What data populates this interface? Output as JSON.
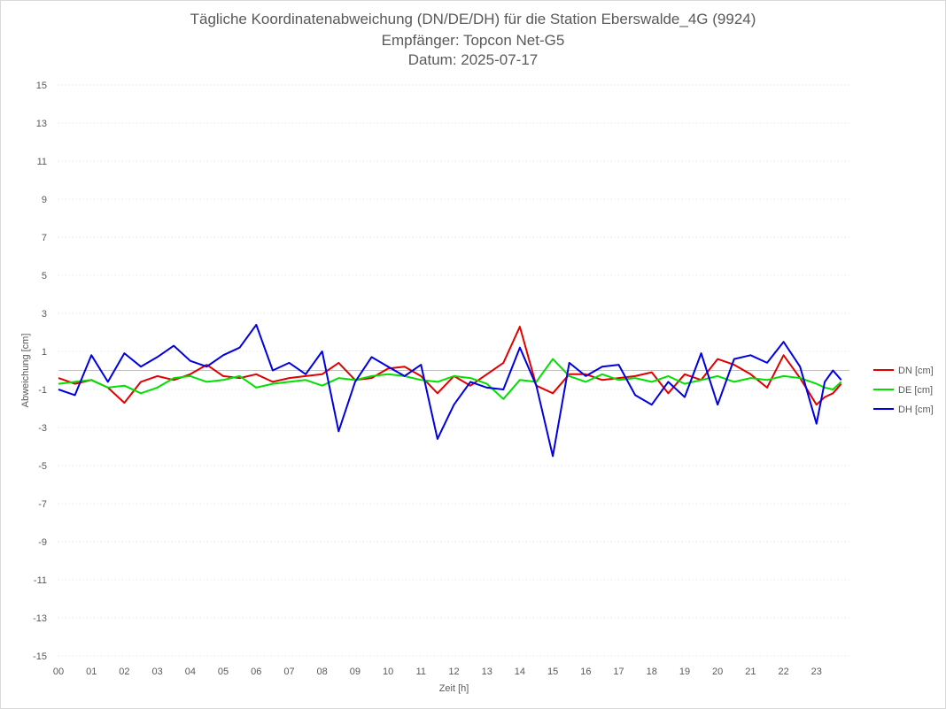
{
  "header": {
    "title": "Tägliche Koordinatenabweichung (DN/DE/DH) für die Station Eberswalde_4G (9924)",
    "subtitle1": "Empfänger: Topcon Net-G5",
    "subtitle2": "Datum: 2025-07-17"
  },
  "chart_data": {
    "type": "line",
    "title": "Tägliche Koordinatenabweichung (DN/DE/DH) für die Station Eberswalde_4G (9924)",
    "subtitle": [
      "Empfänger: Topcon Net-G5",
      "Datum: 2025-07-17"
    ],
    "xlabel": "Zeit [h]",
    "ylabel": "Abweichung [cm]",
    "xlim": [
      0,
      24
    ],
    "ylim": [
      -15,
      15
    ],
    "x_ticks": [
      "00",
      "01",
      "02",
      "03",
      "04",
      "05",
      "06",
      "07",
      "08",
      "09",
      "10",
      "11",
      "12",
      "13",
      "14",
      "15",
      "16",
      "17",
      "18",
      "19",
      "20",
      "21",
      "22",
      "23"
    ],
    "y_ticks": [
      15,
      13,
      11,
      9,
      7,
      5,
      3,
      1,
      -1,
      -3,
      -5,
      -7,
      -9,
      -11,
      -13,
      -15
    ],
    "grid": "horizontal dotted",
    "legend_position": "right",
    "x": [
      0,
      0.5,
      1,
      1.5,
      2,
      2.5,
      3,
      3.5,
      4,
      4.5,
      5,
      5.5,
      6,
      6.5,
      7,
      7.5,
      8,
      8.5,
      9,
      9.5,
      10,
      10.5,
      11,
      11.5,
      12,
      12.5,
      13,
      13.5,
      14,
      14.5,
      15,
      15.5,
      16,
      16.5,
      17,
      17.5,
      18,
      18.5,
      19,
      19.5,
      20,
      20.5,
      21,
      21.5,
      22,
      22.5,
      23,
      23.25,
      23.5,
      23.75
    ],
    "series": [
      {
        "name": "DN [cm]",
        "color": "#e00000",
        "values": [
          -0.4,
          -0.7,
          -0.5,
          -0.9,
          -1.7,
          -0.6,
          -0.3,
          -0.5,
          -0.2,
          0.3,
          -0.3,
          -0.4,
          -0.2,
          -0.6,
          -0.4,
          -0.3,
          -0.2,
          0.4,
          -0.5,
          -0.4,
          0.1,
          0.2,
          -0.3,
          -1.2,
          -0.3,
          -0.8,
          -0.2,
          0.4,
          2.3,
          -0.8,
          -1.2,
          -0.2,
          -0.2,
          -0.5,
          -0.4,
          -0.3,
          -0.1,
          -1.2,
          -0.2,
          -0.5,
          0.6,
          0.3,
          -0.2,
          -0.9,
          0.8,
          -0.4,
          -1.8,
          -1.4,
          -1.2,
          -0.7
        ]
      },
      {
        "name": "DE [cm]",
        "color": "#00e000",
        "values": [
          -0.7,
          -0.6,
          -0.5,
          -0.9,
          -0.8,
          -1.2,
          -0.9,
          -0.4,
          -0.3,
          -0.6,
          -0.5,
          -0.3,
          -0.9,
          -0.7,
          -0.6,
          -0.5,
          -0.8,
          -0.4,
          -0.5,
          -0.3,
          -0.2,
          -0.3,
          -0.5,
          -0.6,
          -0.3,
          -0.4,
          -0.7,
          -1.5,
          -0.5,
          -0.6,
          0.6,
          -0.3,
          -0.6,
          -0.2,
          -0.5,
          -0.4,
          -0.6,
          -0.3,
          -0.7,
          -0.5,
          -0.3,
          -0.6,
          -0.4,
          -0.5,
          -0.3,
          -0.4,
          -0.7,
          -0.9,
          -1.0,
          -0.6
        ]
      },
      {
        "name": "DH [cm]",
        "color": "#0000e0",
        "values": [
          -1.0,
          -1.3,
          0.8,
          -0.6,
          0.9,
          0.2,
          0.7,
          1.3,
          0.5,
          0.2,
          0.8,
          1.2,
          2.4,
          0.0,
          0.4,
          -0.2,
          1.0,
          -3.2,
          -0.6,
          0.7,
          0.2,
          -0.3,
          0.3,
          -3.6,
          -1.8,
          -0.6,
          -0.9,
          -1.0,
          1.2,
          -0.8,
          -4.5,
          0.4,
          -0.3,
          0.2,
          0.3,
          -1.3,
          -1.8,
          -0.6,
          -1.4,
          0.9,
          -1.8,
          0.6,
          0.8,
          0.4,
          1.5,
          0.2,
          -2.8,
          -0.6,
          0.0,
          -0.5
        ]
      }
    ]
  }
}
